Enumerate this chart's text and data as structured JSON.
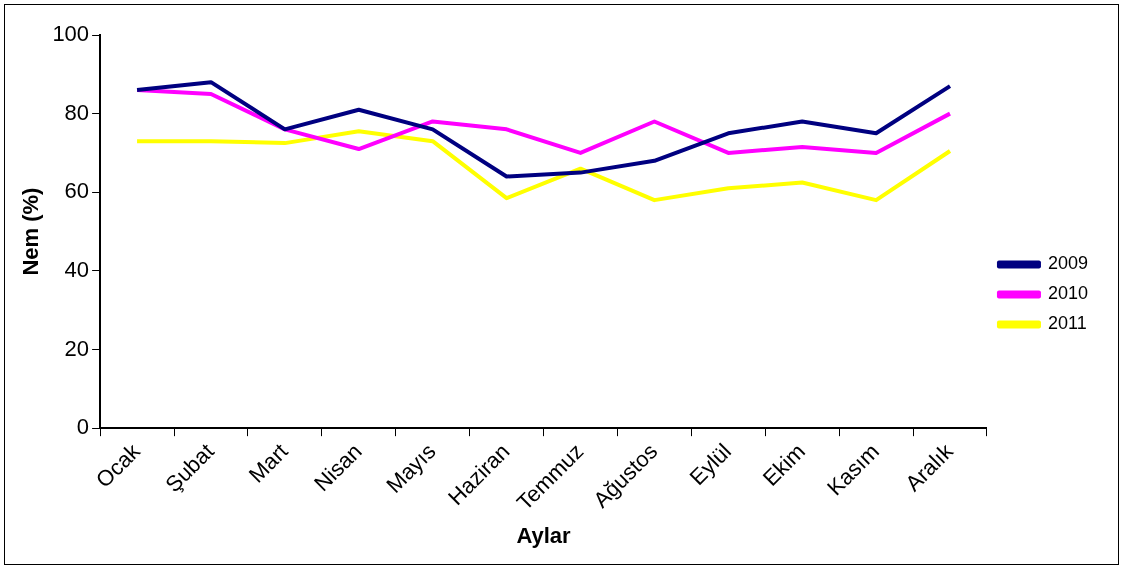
{
  "chart_data": {
    "type": "line",
    "xlabel": "Aylar",
    "ylabel": "Nem (%)",
    "categories": [
      "Ocak",
      "Şubat",
      "Mart",
      "Nisan",
      "Mayıs",
      "Haziran",
      "Temmuz",
      "Ağustos",
      "Eylül",
      "Ekim",
      "Kasım",
      "Aralık"
    ],
    "series": [
      {
        "name": "2009",
        "color": "#000080",
        "values": [
          86,
          88,
          76,
          81,
          76,
          64,
          65,
          68,
          75,
          78,
          75,
          87
        ]
      },
      {
        "name": "2010",
        "color": "#ff00ff",
        "values": [
          86,
          85,
          76,
          71,
          78,
          76,
          70,
          78,
          70,
          71.5,
          70,
          80
        ]
      },
      {
        "name": "2011",
        "color": "#ffff00",
        "values": [
          73,
          73,
          72.5,
          75.5,
          73,
          58.5,
          66,
          58,
          61,
          62.5,
          58,
          70.5
        ]
      }
    ],
    "ylim": [
      0,
      100
    ],
    "yticks": [
      0,
      20,
      40,
      60,
      80,
      100
    ],
    "grid": false,
    "legend": "right",
    "marker": "none",
    "line_style": "solid"
  }
}
